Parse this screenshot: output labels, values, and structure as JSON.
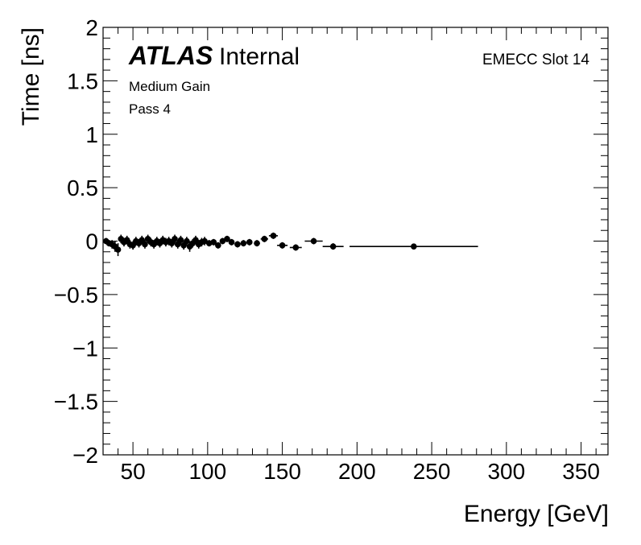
{
  "chart_data": {
    "type": "scatter",
    "xlabel": "Energy [GeV]",
    "ylabel": "Time [ns]",
    "xlim": [
      30,
      368
    ],
    "ylim": [
      -2,
      2
    ],
    "xticks": [
      50,
      100,
      150,
      200,
      250,
      300,
      350
    ],
    "yticks": [
      -2,
      -1.5,
      -1,
      -0.5,
      0,
      0.5,
      1,
      1.5,
      2
    ],
    "ytick_labels": [
      "−2",
      "−1.5",
      "−1",
      "−0.5",
      "0",
      "0.5",
      "1",
      "1.5",
      "2"
    ],
    "grid": false,
    "labels": {
      "atlas": "ATLAS",
      "internal": "Internal",
      "gain": "Medium Gain",
      "pass": "Pass 4",
      "slot": "EMECC Slot 14"
    },
    "points": [
      {
        "x": 32,
        "y": 0.0,
        "xerr": 1.0,
        "yerr": 0.03
      },
      {
        "x": 34,
        "y": -0.02,
        "xerr": 1.0,
        "yerr": 0.03
      },
      {
        "x": 36,
        "y": -0.03,
        "xerr": 1.0,
        "yerr": 0.04
      },
      {
        "x": 38,
        "y": -0.05,
        "xerr": 1.0,
        "yerr": 0.05
      },
      {
        "x": 40,
        "y": -0.08,
        "xerr": 1.0,
        "yerr": 0.06
      },
      {
        "x": 42,
        "y": 0.02,
        "xerr": 1.0,
        "yerr": 0.04
      },
      {
        "x": 44,
        "y": -0.01,
        "xerr": 1.0,
        "yerr": 0.04
      },
      {
        "x": 46,
        "y": 0.01,
        "xerr": 1.0,
        "yerr": 0.04
      },
      {
        "x": 48,
        "y": -0.03,
        "xerr": 1.0,
        "yerr": 0.04
      },
      {
        "x": 50,
        "y": -0.04,
        "xerr": 1.0,
        "yerr": 0.04
      },
      {
        "x": 52,
        "y": 0.0,
        "xerr": 1.0,
        "yerr": 0.04
      },
      {
        "x": 54,
        "y": -0.02,
        "xerr": 1.0,
        "yerr": 0.04
      },
      {
        "x": 56,
        "y": 0.01,
        "xerr": 1.0,
        "yerr": 0.04
      },
      {
        "x": 58,
        "y": -0.03,
        "xerr": 1.0,
        "yerr": 0.04
      },
      {
        "x": 60,
        "y": 0.02,
        "xerr": 1.0,
        "yerr": 0.04
      },
      {
        "x": 62,
        "y": -0.01,
        "xerr": 1.0,
        "yerr": 0.04
      },
      {
        "x": 64,
        "y": -0.03,
        "xerr": 1.0,
        "yerr": 0.04
      },
      {
        "x": 66,
        "y": 0.0,
        "xerr": 1.0,
        "yerr": 0.04
      },
      {
        "x": 68,
        "y": -0.02,
        "xerr": 1.0,
        "yerr": 0.04
      },
      {
        "x": 70,
        "y": 0.01,
        "xerr": 1.0,
        "yerr": 0.04
      },
      {
        "x": 72,
        "y": -0.01,
        "xerr": 1.0,
        "yerr": 0.04
      },
      {
        "x": 74,
        "y": 0.0,
        "xerr": 1.0,
        "yerr": 0.04
      },
      {
        "x": 76,
        "y": -0.02,
        "xerr": 1.0,
        "yerr": 0.04
      },
      {
        "x": 78,
        "y": 0.02,
        "xerr": 1.0,
        "yerr": 0.04
      },
      {
        "x": 80,
        "y": -0.03,
        "xerr": 1.0,
        "yerr": 0.04
      },
      {
        "x": 82,
        "y": 0.01,
        "xerr": 1.0,
        "yerr": 0.04
      },
      {
        "x": 84,
        "y": -0.04,
        "xerr": 1.0,
        "yerr": 0.04
      },
      {
        "x": 86,
        "y": 0.0,
        "xerr": 1.0,
        "yerr": 0.04
      },
      {
        "x": 88,
        "y": -0.05,
        "xerr": 1.0,
        "yerr": 0.05
      },
      {
        "x": 90,
        "y": -0.02,
        "xerr": 1.0,
        "yerr": 0.04
      },
      {
        "x": 92,
        "y": 0.01,
        "xerr": 1.0,
        "yerr": 0.04
      },
      {
        "x": 94,
        "y": -0.03,
        "xerr": 1.0,
        "yerr": 0.04
      },
      {
        "x": 96,
        "y": -0.01,
        "xerr": 1.0,
        "yerr": 0.04
      },
      {
        "x": 98,
        "y": 0.0,
        "xerr": 1.0,
        "yerr": 0.04
      },
      {
        "x": 101,
        "y": -0.02,
        "xerr": 1.5,
        "yerr": 0.03
      },
      {
        "x": 104,
        "y": -0.01,
        "xerr": 1.5,
        "yerr": 0.03
      },
      {
        "x": 107,
        "y": -0.04,
        "xerr": 1.5,
        "yerr": 0.03
      },
      {
        "x": 110,
        "y": 0.0,
        "xerr": 1.5,
        "yerr": 0.03
      },
      {
        "x": 113,
        "y": 0.02,
        "xerr": 1.5,
        "yerr": 0.03
      },
      {
        "x": 116,
        "y": -0.01,
        "xerr": 1.5,
        "yerr": 0.03
      },
      {
        "x": 120,
        "y": -0.03,
        "xerr": 2.0,
        "yerr": 0.03
      },
      {
        "x": 124,
        "y": -0.02,
        "xerr": 2.0,
        "yerr": 0.03
      },
      {
        "x": 128,
        "y": -0.01,
        "xerr": 2.0,
        "yerr": 0.03
      },
      {
        "x": 133,
        "y": -0.02,
        "xerr": 2.0,
        "yerr": 0.03
      },
      {
        "x": 138,
        "y": 0.02,
        "xerr": 2.5,
        "yerr": 0.03
      },
      {
        "x": 144,
        "y": 0.05,
        "xerr": 3.0,
        "yerr": 0.03
      },
      {
        "x": 150,
        "y": -0.04,
        "xerr": 3.5,
        "yerr": 0.03
      },
      {
        "x": 159,
        "y": -0.06,
        "xerr": 4.0,
        "yerr": 0.03
      },
      {
        "x": 171,
        "y": 0.0,
        "xerr": 6.0,
        "yerr": 0.03
      },
      {
        "x": 184,
        "y": -0.05,
        "xerr": 7.0,
        "yerr": 0.03
      },
      {
        "x": 238,
        "y": -0.05,
        "xerr": 43.0,
        "yerr": 0.02
      }
    ]
  }
}
